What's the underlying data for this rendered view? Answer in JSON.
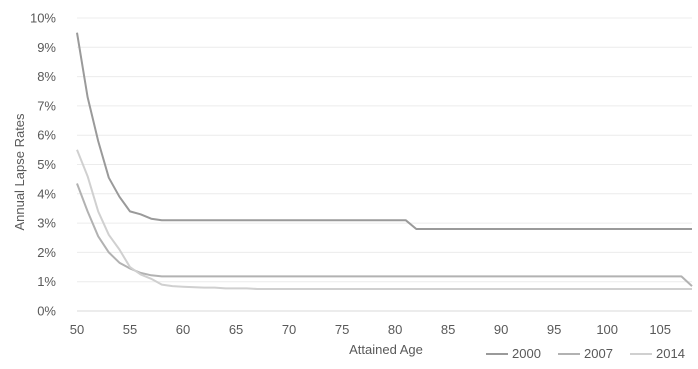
{
  "chart_data": {
    "type": "line",
    "title": "",
    "xlabel": "Attained Age",
    "ylabel": "Annual Lapse Rates",
    "xlim": [
      50,
      108
    ],
    "ylim": [
      0,
      10
    ],
    "x_ticks": [
      50,
      55,
      60,
      65,
      70,
      75,
      80,
      85,
      90,
      95,
      100,
      105
    ],
    "x_tick_labels": [
      "50",
      "55",
      "60",
      "65",
      "70",
      "75",
      "80",
      "85",
      "90",
      "95",
      "100",
      "105"
    ],
    "y_ticks": [
      0,
      1,
      2,
      3,
      4,
      5,
      6,
      7,
      8,
      9,
      10
    ],
    "y_tick_labels": [
      "0%",
      "1%",
      "2%",
      "3%",
      "4%",
      "5%",
      "6%",
      "7%",
      "8%",
      "9%",
      "10%"
    ],
    "grid": "horizontal",
    "legend_position": "bottom-right",
    "series": [
      {
        "name": "2000",
        "color": "#9a9a9a",
        "points": [
          [
            50,
            9.5
          ],
          [
            51,
            7.3
          ],
          [
            52,
            5.8
          ],
          [
            53,
            4.55
          ],
          [
            54,
            3.9
          ],
          [
            55,
            3.4
          ],
          [
            56,
            3.3
          ],
          [
            57,
            3.15
          ],
          [
            58,
            3.1
          ],
          [
            60,
            3.1
          ],
          [
            65,
            3.1
          ],
          [
            70,
            3.1
          ],
          [
            75,
            3.1
          ],
          [
            80,
            3.1
          ],
          [
            81,
            3.1
          ],
          [
            82,
            2.8
          ],
          [
            85,
            2.8
          ],
          [
            90,
            2.8
          ],
          [
            95,
            2.8
          ],
          [
            100,
            2.8
          ],
          [
            105,
            2.8
          ],
          [
            108,
            2.8
          ]
        ]
      },
      {
        "name": "2007",
        "color": "#b2b2b2",
        "points": [
          [
            50,
            4.35
          ],
          [
            51,
            3.4
          ],
          [
            52,
            2.55
          ],
          [
            53,
            2.0
          ],
          [
            54,
            1.65
          ],
          [
            55,
            1.45
          ],
          [
            56,
            1.3
          ],
          [
            57,
            1.22
          ],
          [
            58,
            1.18
          ],
          [
            60,
            1.18
          ],
          [
            65,
            1.18
          ],
          [
            70,
            1.18
          ],
          [
            75,
            1.18
          ],
          [
            80,
            1.18
          ],
          [
            85,
            1.18
          ],
          [
            90,
            1.18
          ],
          [
            95,
            1.18
          ],
          [
            100,
            1.18
          ],
          [
            105,
            1.18
          ],
          [
            107,
            1.18
          ],
          [
            108,
            0.85
          ]
        ]
      },
      {
        "name": "2014",
        "color": "#d0d0d0",
        "points": [
          [
            50,
            5.5
          ],
          [
            51,
            4.6
          ],
          [
            52,
            3.4
          ],
          [
            53,
            2.6
          ],
          [
            54,
            2.1
          ],
          [
            55,
            1.5
          ],
          [
            56,
            1.25
          ],
          [
            57,
            1.1
          ],
          [
            58,
            0.9
          ],
          [
            59,
            0.85
          ],
          [
            60,
            0.83
          ],
          [
            62,
            0.8
          ],
          [
            63,
            0.8
          ],
          [
            64,
            0.77
          ],
          [
            66,
            0.77
          ],
          [
            67,
            0.75
          ],
          [
            70,
            0.75
          ],
          [
            75,
            0.75
          ],
          [
            80,
            0.75
          ],
          [
            85,
            0.75
          ],
          [
            90,
            0.75
          ],
          [
            95,
            0.75
          ],
          [
            100,
            0.75
          ],
          [
            105,
            0.75
          ],
          [
            108,
            0.75
          ]
        ]
      }
    ]
  }
}
